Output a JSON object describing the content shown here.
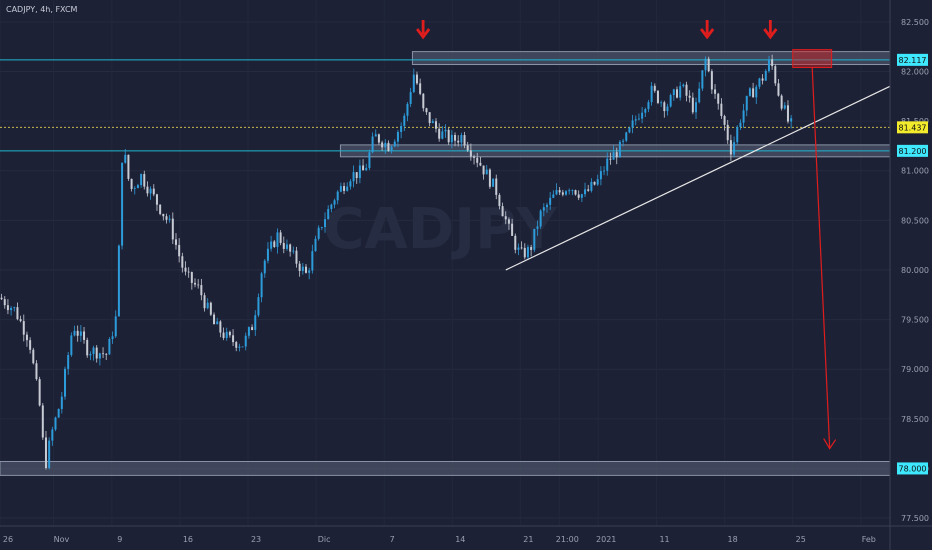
{
  "header": {
    "symbol_label": "CADJPY, 4h, FXCM"
  },
  "watermark": {
    "ticker": "CADJPY"
  },
  "colors": {
    "background": "#1d2135",
    "bull": "#2d9cdb",
    "bear": "#c7cbd4",
    "resistance_line": "#1fb6d1",
    "annotation_red": "#e01d1d",
    "trendline": "#e6e6e6",
    "current_price_label": "#f2ec2c",
    "level_label": "#3ee8ff",
    "zone_fill": "#5b6478"
  },
  "chart_data": {
    "type": "candlestick",
    "instrument": "CADJPY",
    "timeframe": "4h",
    "source": "FXCM",
    "ylim": [
      77.42,
      82.72
    ],
    "y_ticks": [
      82.5,
      82.0,
      81.5,
      81.0,
      80.5,
      80.0,
      79.5,
      79.0,
      78.5,
      78.0,
      77.5
    ],
    "y_tick_labels": [
      "82.500",
      "82.000",
      "81.500",
      "81.000",
      "80.500",
      "80.000",
      "79.500",
      "79.000",
      "78.500",
      "78.000",
      "77.500"
    ],
    "x_labels": [
      "26",
      "Nov",
      "9",
      "16",
      "23",
      "Dic",
      "7",
      "14",
      "21",
      "21:00",
      "2021",
      "11",
      "18",
      "25",
      "Feb"
    ],
    "x_label_positions": [
      0,
      5.5,
      11.5,
      18.5,
      25.5,
      32.5,
      39.5,
      46.5,
      53.5,
      57.5,
      61.5,
      67.5,
      74.5,
      81.5,
      88.5
    ],
    "x_range": [
      0,
      91.5
    ],
    "path_points": [
      [
        0,
        79.72
      ],
      [
        1.5,
        79.6
      ],
      [
        3,
        79.3
      ],
      [
        4.2,
        78.55
      ],
      [
        4.6,
        78.0
      ],
      [
        5.3,
        78.35
      ],
      [
        6.3,
        78.7
      ],
      [
        7.5,
        79.45
      ],
      [
        9,
        79.2
      ],
      [
        11,
        79.15
      ],
      [
        12,
        79.55
      ],
      [
        12.6,
        81.28
      ],
      [
        13.4,
        80.8
      ],
      [
        14.5,
        80.95
      ],
      [
        16,
        80.7
      ],
      [
        17.5,
        80.45
      ],
      [
        19,
        79.95
      ],
      [
        20.5,
        79.8
      ],
      [
        22,
        79.45
      ],
      [
        23.5,
        79.3
      ],
      [
        25,
        79.25
      ],
      [
        26,
        79.45
      ],
      [
        27,
        80.05
      ],
      [
        28.5,
        80.35
      ],
      [
        30,
        80.15
      ],
      [
        31.5,
        79.95
      ],
      [
        33,
        80.45
      ],
      [
        34.5,
        80.75
      ],
      [
        36,
        80.95
      ],
      [
        37.5,
        81.0
      ],
      [
        38.5,
        81.35
      ],
      [
        40,
        81.25
      ],
      [
        41.5,
        81.5
      ],
      [
        42.6,
        82.0
      ],
      [
        43.5,
        81.6
      ],
      [
        45,
        81.4
      ],
      [
        46.5,
        81.3
      ],
      [
        47.5,
        81.35
      ],
      [
        48.5,
        81.2
      ],
      [
        49.5,
        81.05
      ],
      [
        51,
        80.8
      ],
      [
        52.5,
        80.35
      ],
      [
        53.5,
        80.15
      ],
      [
        54.5,
        80.2
      ],
      [
        55.5,
        80.55
      ],
      [
        57,
        80.75
      ],
      [
        58.5,
        80.85
      ],
      [
        60,
        80.75
      ],
      [
        61.5,
        80.9
      ],
      [
        62.5,
        81.1
      ],
      [
        64,
        81.25
      ],
      [
        65.5,
        81.55
      ],
      [
        67,
        81.8
      ],
      [
        68.5,
        81.65
      ],
      [
        70,
        81.85
      ],
      [
        71.5,
        81.6
      ],
      [
        72.5,
        82.13
      ],
      [
        73.5,
        81.75
      ],
      [
        74.5,
        81.45
      ],
      [
        75.2,
        81.2
      ],
      [
        76,
        81.5
      ],
      [
        77,
        81.75
      ],
      [
        78.5,
        81.95
      ],
      [
        79.2,
        82.12
      ],
      [
        80,
        81.8
      ],
      [
        81,
        81.5
      ],
      [
        81.5,
        81.44
      ]
    ],
    "last_price": 81.437,
    "levels": [
      {
        "name": "resistance",
        "price": 82.117,
        "label": "82.117"
      },
      {
        "name": "support",
        "price": 81.2,
        "label": "81.200"
      },
      {
        "name": "target",
        "price": 78.0,
        "label": "78.000"
      }
    ],
    "zones": [
      {
        "name": "top",
        "x_from": 42.4,
        "x_to": 91.5,
        "y_from": 82.07,
        "y_to": 82.2
      },
      {
        "name": "middle",
        "x_from": 35,
        "x_to": 91.5,
        "y_from": 81.14,
        "y_to": 81.26
      },
      {
        "name": "bottom",
        "x_from": 0,
        "x_to": 91.5,
        "y_from": 77.93,
        "y_to": 78.07
      }
    ],
    "trendline": {
      "from": [
        52,
        80.0
      ],
      "to": [
        91.5,
        81.85
      ]
    },
    "annotation_arrows_x": [
      43.5,
      72.7,
      79.2
    ],
    "highlight_box": {
      "x_from": 81.5,
      "x_to": 85.5,
      "y_from": 82.04,
      "y_to": 82.22
    },
    "projection_arrow": {
      "from": [
        83.5,
        82.04
      ],
      "to": [
        85.3,
        78.2
      ]
    }
  }
}
